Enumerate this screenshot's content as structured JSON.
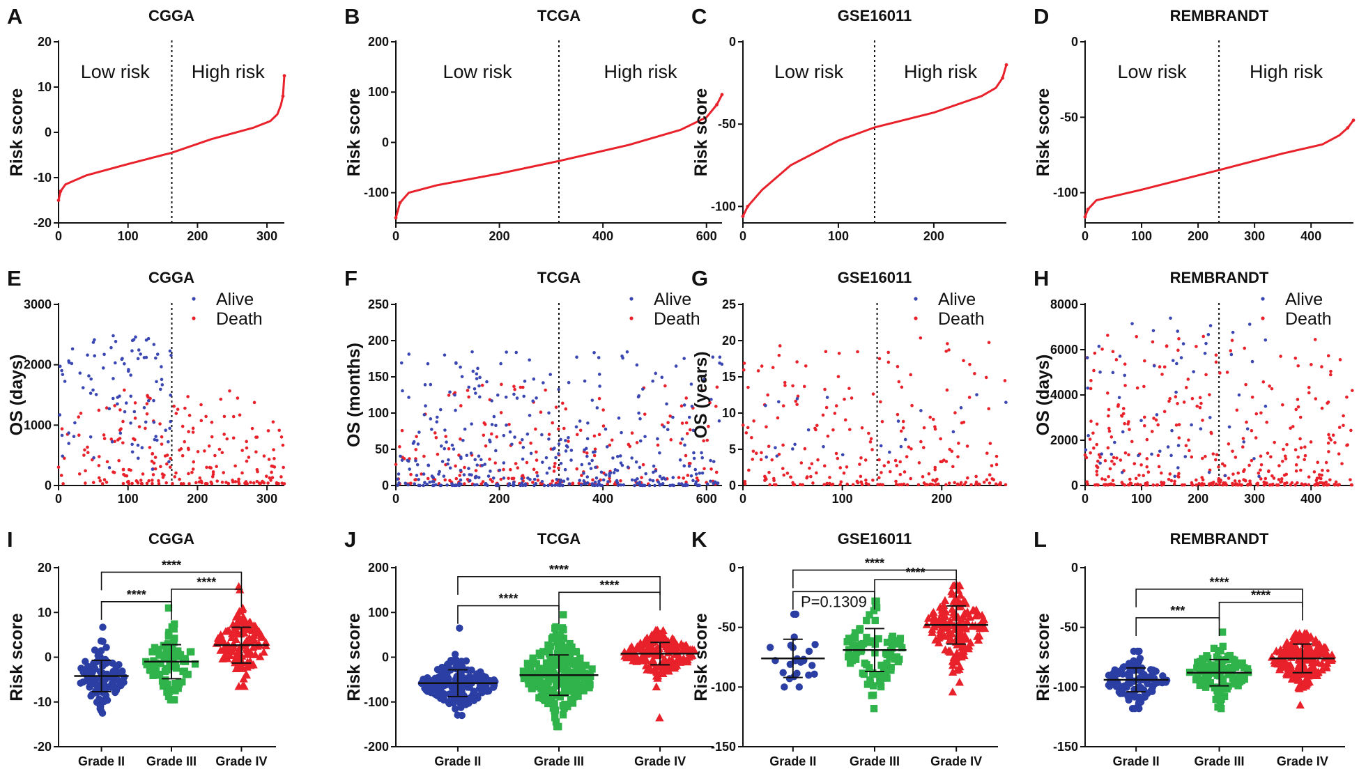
{
  "colors": {
    "red": "#e8212a",
    "blue": "#2b3ea3",
    "green": "#2fb34a",
    "dotBlue": "#3a47b3",
    "black": "#111111"
  },
  "chart_data": [
    {
      "type": "line",
      "label": "A",
      "title": "CGGA",
      "ylabel": "Risk score",
      "xlim": [
        0,
        325
      ],
      "ylim": [
        -20,
        20
      ],
      "xticks": [
        "0",
        "100",
        "200",
        "300"
      ],
      "xtick_values": [
        0,
        100,
        200,
        300
      ],
      "yticks": [
        "-20",
        "-10",
        "0",
        "10",
        "20"
      ],
      "ytick_values": [
        -20,
        -10,
        0,
        10,
        20
      ],
      "cutoff": 163,
      "low_label": "Low risk",
      "high_label": "High risk",
      "curve": [
        [
          0,
          -15
        ],
        [
          3,
          -13
        ],
        [
          10,
          -11.5
        ],
        [
          40,
          -9.5
        ],
        [
          100,
          -7
        ],
        [
          163,
          -4.5
        ],
        [
          220,
          -1.5
        ],
        [
          280,
          1
        ],
        [
          305,
          2.5
        ],
        [
          315,
          4
        ],
        [
          320,
          6
        ],
        [
          323,
          8
        ],
        [
          325,
          12.5
        ]
      ]
    },
    {
      "type": "line",
      "label": "B",
      "title": "TCGA",
      "ylabel": "Risk score",
      "xlim": [
        0,
        630
      ],
      "ylim": [
        -160,
        200
      ],
      "xticks": [
        "0",
        "200",
        "400",
        "600"
      ],
      "xtick_values": [
        0,
        200,
        400,
        600
      ],
      "yticks": [
        "-100",
        "0",
        "100",
        "200"
      ],
      "ytick_values": [
        -100,
        0,
        100,
        200
      ],
      "cutoff": 315,
      "low_label": "Low risk",
      "high_label": "High risk",
      "curve": [
        [
          0,
          -150
        ],
        [
          8,
          -120
        ],
        [
          25,
          -100
        ],
        [
          80,
          -85
        ],
        [
          200,
          -62
        ],
        [
          315,
          -37
        ],
        [
          450,
          -5
        ],
        [
          550,
          25
        ],
        [
          600,
          50
        ],
        [
          620,
          75
        ],
        [
          630,
          95
        ]
      ]
    },
    {
      "type": "line",
      "label": "C",
      "title": "GSE16011",
      "ylabel": "Risk score",
      "xlim": [
        0,
        276
      ],
      "ylim": [
        -110,
        0
      ],
      "xticks": [
        "0",
        "100",
        "200"
      ],
      "xtick_values": [
        0,
        100,
        200
      ],
      "yticks": [
        "-100",
        "-50",
        "0"
      ],
      "ytick_values": [
        -100,
        -50,
        0
      ],
      "cutoff": 138,
      "low_label": "Low risk",
      "high_label": "High risk",
      "curve": [
        [
          0,
          -106
        ],
        [
          5,
          -100
        ],
        [
          20,
          -90
        ],
        [
          50,
          -75
        ],
        [
          100,
          -60
        ],
        [
          138,
          -52
        ],
        [
          200,
          -43
        ],
        [
          250,
          -33
        ],
        [
          265,
          -28
        ],
        [
          272,
          -22
        ],
        [
          276,
          -14
        ]
      ]
    },
    {
      "type": "line",
      "label": "D",
      "title": "REMBRANDT",
      "ylabel": "Risk score",
      "xlim": [
        0,
        475
      ],
      "ylim": [
        -120,
        0
      ],
      "xticks": [
        "0",
        "100",
        "200",
        "300",
        "400"
      ],
      "xtick_values": [
        0,
        100,
        200,
        300,
        400
      ],
      "yticks": [
        "-100",
        "-50",
        "0"
      ],
      "ytick_values": [
        -100,
        -50,
        0
      ],
      "cutoff": 237,
      "low_label": "Low risk",
      "high_label": "High risk",
      "curve": [
        [
          0,
          -116
        ],
        [
          5,
          -111
        ],
        [
          20,
          -105
        ],
        [
          100,
          -98
        ],
        [
          237,
          -85
        ],
        [
          350,
          -74
        ],
        [
          420,
          -68
        ],
        [
          450,
          -62
        ],
        [
          465,
          -57
        ],
        [
          475,
          -52
        ]
      ]
    },
    {
      "type": "scatter",
      "label": "E",
      "title": "CGGA",
      "ylabel": "OS (days)",
      "xlim": [
        0,
        325
      ],
      "ylim": [
        0,
        3000
      ],
      "xticks": [
        "0",
        "100",
        "200",
        "300"
      ],
      "xtick_values": [
        0,
        100,
        200,
        300
      ],
      "yticks": [
        "0",
        "1000",
        "2000",
        "3000"
      ],
      "ytick_values": [
        0,
        1000,
        2000,
        3000
      ],
      "cutoff": 163,
      "legend": [
        "Alive",
        "Death"
      ],
      "alive": {
        "n": 95,
        "xrange": [
          0,
          163
        ],
        "ymin": 100,
        "ymax": 2500,
        "skew": 0.7
      },
      "death": {
        "n": 230,
        "xrange": [
          0,
          325
        ],
        "ymin": 30,
        "ymax": 1600,
        "skew": 2.2
      }
    },
    {
      "type": "scatter",
      "label": "F",
      "title": "TCGA",
      "ylabel": "OS (months)",
      "xlim": [
        0,
        630
      ],
      "ylim": [
        0,
        250
      ],
      "xticks": [
        "0",
        "200",
        "400",
        "600"
      ],
      "xtick_values": [
        0,
        200,
        400,
        600
      ],
      "yticks": [
        "0",
        "50",
        "100",
        "150",
        "200",
        "250"
      ],
      "ytick_values": [
        0,
        50,
        100,
        150,
        200,
        250
      ],
      "cutoff": 315,
      "legend": [
        "Alive",
        "Death"
      ],
      "alive": {
        "n": 400,
        "xrange": [
          0,
          630
        ],
        "ymin": 0,
        "ymax": 185,
        "skew": 3.0
      },
      "death": {
        "n": 230,
        "xrange": [
          0,
          630
        ],
        "ymin": 2,
        "ymax": 140,
        "skew": 2.4
      }
    },
    {
      "type": "scatter",
      "label": "G",
      "title": "GSE16011",
      "ylabel": "OS (years)",
      "xlim": [
        0,
        265
      ],
      "ylim": [
        0,
        25
      ],
      "xticks": [
        "0",
        "100",
        "200"
      ],
      "xtick_values": [
        0,
        100,
        200
      ],
      "yticks": [
        "0",
        "5",
        "10",
        "15",
        "20",
        "25"
      ],
      "ytick_values": [
        0,
        5,
        10,
        15,
        20,
        25
      ],
      "cutoff": 135,
      "legend": [
        "Alive",
        "Death"
      ],
      "alive": {
        "n": 22,
        "xrange": [
          0,
          265
        ],
        "ymin": 1,
        "ymax": 13,
        "skew": 1.0
      },
      "death": {
        "n": 250,
        "xrange": [
          0,
          265
        ],
        "ymin": 0.1,
        "ymax": 20.6,
        "skew": 3.2
      }
    },
    {
      "type": "scatter",
      "label": "H",
      "title": "REMBRANDT",
      "ylabel": "OS (days)",
      "xlim": [
        0,
        475
      ],
      "ylim": [
        0,
        8000
      ],
      "xticks": [
        "0",
        "100",
        "200",
        "300",
        "400"
      ],
      "xtick_values": [
        0,
        100,
        200,
        300,
        400
      ],
      "yticks": [
        "0",
        "2000",
        "4000",
        "6000",
        "8000"
      ],
      "ytick_values": [
        0,
        2000,
        4000,
        6000,
        8000
      ],
      "cutoff": 237,
      "legend": [
        "Alive",
        "Death"
      ],
      "alive": {
        "n": 60,
        "xrange": [
          0,
          320
        ],
        "ymin": 400,
        "ymax": 7500,
        "skew": 1.1
      },
      "death": {
        "n": 400,
        "xrange": [
          0,
          475
        ],
        "ymin": 20,
        "ymax": 6800,
        "skew": 3.0
      }
    },
    {
      "type": "dot",
      "label": "I",
      "title": "CGGA",
      "ylabel": "Risk score",
      "ylim": [
        -20,
        20
      ],
      "yticks": [
        "-20",
        "-10",
        "0",
        "10",
        "20"
      ],
      "ytick_values": [
        -20,
        -10,
        0,
        10,
        20
      ],
      "groups": [
        {
          "name": "Grade II",
          "shape": "circle",
          "color": "blue",
          "mean": -4.2,
          "min": -12.5,
          "max": 6.7,
          "sd": 3.5,
          "n": 100
        },
        {
          "name": "Grade III",
          "shape": "square",
          "color": "green",
          "mean": -1.0,
          "min": -9.5,
          "max": 11.0,
          "sd": 3.8,
          "n": 85
        },
        {
          "name": "Grade IV",
          "shape": "triangle",
          "color": "red",
          "mean": 2.7,
          "min": -6.5,
          "max": 15.8,
          "sd": 4.0,
          "n": 140
        }
      ],
      "brackets": [
        {
          "from": 0,
          "to": 2,
          "y": 19.0,
          "text": "****"
        },
        {
          "from": 1,
          "to": 2,
          "y": 15.2,
          "text": "****"
        },
        {
          "from": 0,
          "to": 1,
          "y": 12.4,
          "text": "****"
        }
      ]
    },
    {
      "type": "dot",
      "label": "J",
      "title": "TCGA",
      "ylabel": "Risk score",
      "ylim": [
        -200,
        200
      ],
      "yticks": [
        "-200",
        "-100",
        "0",
        "100",
        "200"
      ],
      "ytick_values": [
        -200,
        -100,
        0,
        100,
        200
      ],
      "groups": [
        {
          "name": "Grade II",
          "shape": "circle",
          "color": "blue",
          "mean": -58,
          "min": -130,
          "max": 65,
          "sd": 30,
          "n": 200
        },
        {
          "name": "Grade III",
          "shape": "square",
          "color": "green",
          "mean": -40,
          "min": -155,
          "max": 95,
          "sd": 45,
          "n": 240
        },
        {
          "name": "Grade IV",
          "shape": "triangle",
          "color": "red",
          "mean": 8,
          "min": -135,
          "max": 60,
          "sd": 25,
          "n": 170
        }
      ],
      "brackets": [
        {
          "from": 0,
          "to": 2,
          "y": 180,
          "text": "****"
        },
        {
          "from": 1,
          "to": 2,
          "y": 145,
          "text": "****"
        },
        {
          "from": 0,
          "to": 1,
          "y": 115,
          "text": "****"
        }
      ]
    },
    {
      "type": "dot",
      "label": "K",
      "title": "GSE16011",
      "ylabel": "Risk score",
      "ylim": [
        -150,
        0
      ],
      "yticks": [
        "-150",
        "-100",
        "-50",
        "0"
      ],
      "ytick_values": [
        -150,
        -100,
        -50,
        0
      ],
      "groups": [
        {
          "name": "Grade II",
          "shape": "circle",
          "color": "blue",
          "mean": -76,
          "min": -100,
          "max": -39,
          "sd": 16,
          "n": 24
        },
        {
          "name": "Grade III",
          "shape": "square",
          "color": "green",
          "mean": -69,
          "min": -118,
          "max": -28,
          "sd": 18,
          "n": 85
        },
        {
          "name": "Grade IV",
          "shape": "triangle",
          "color": "red",
          "mean": -48,
          "min": -104,
          "max": -15,
          "sd": 16,
          "n": 160
        }
      ],
      "brackets": [
        {
          "from": 0,
          "to": 2,
          "y": -2,
          "text": "****"
        },
        {
          "from": 1,
          "to": 2,
          "y": -10,
          "text": "****"
        },
        {
          "from": 0,
          "to": 1,
          "y": -20,
          "text": "P=0.1309"
        }
      ]
    },
    {
      "type": "dot",
      "label": "L",
      "title": "REMBRANDT",
      "ylabel": "Risk score",
      "ylim": [
        -150,
        0
      ],
      "yticks": [
        "-150",
        "-100",
        "-50",
        "0"
      ],
      "ytick_values": [
        -150,
        -100,
        -50,
        0
      ],
      "groups": [
        {
          "name": "Grade II",
          "shape": "circle",
          "color": "blue",
          "mean": -94,
          "min": -118,
          "max": -70,
          "sd": 10,
          "n": 110
        },
        {
          "name": "Grade III",
          "shape": "square",
          "color": "green",
          "mean": -88,
          "min": -118,
          "max": -54,
          "sd": 11,
          "n": 100
        },
        {
          "name": "Grade IV",
          "shape": "triangle",
          "color": "red",
          "mean": -76,
          "min": -115,
          "max": -55,
          "sd": 12,
          "n": 200
        }
      ],
      "brackets": [
        {
          "from": 0,
          "to": 2,
          "y": -18,
          "text": "****"
        },
        {
          "from": 1,
          "to": 2,
          "y": -29,
          "text": "****"
        },
        {
          "from": 0,
          "to": 1,
          "y": -42,
          "text": "***"
        }
      ]
    }
  ]
}
